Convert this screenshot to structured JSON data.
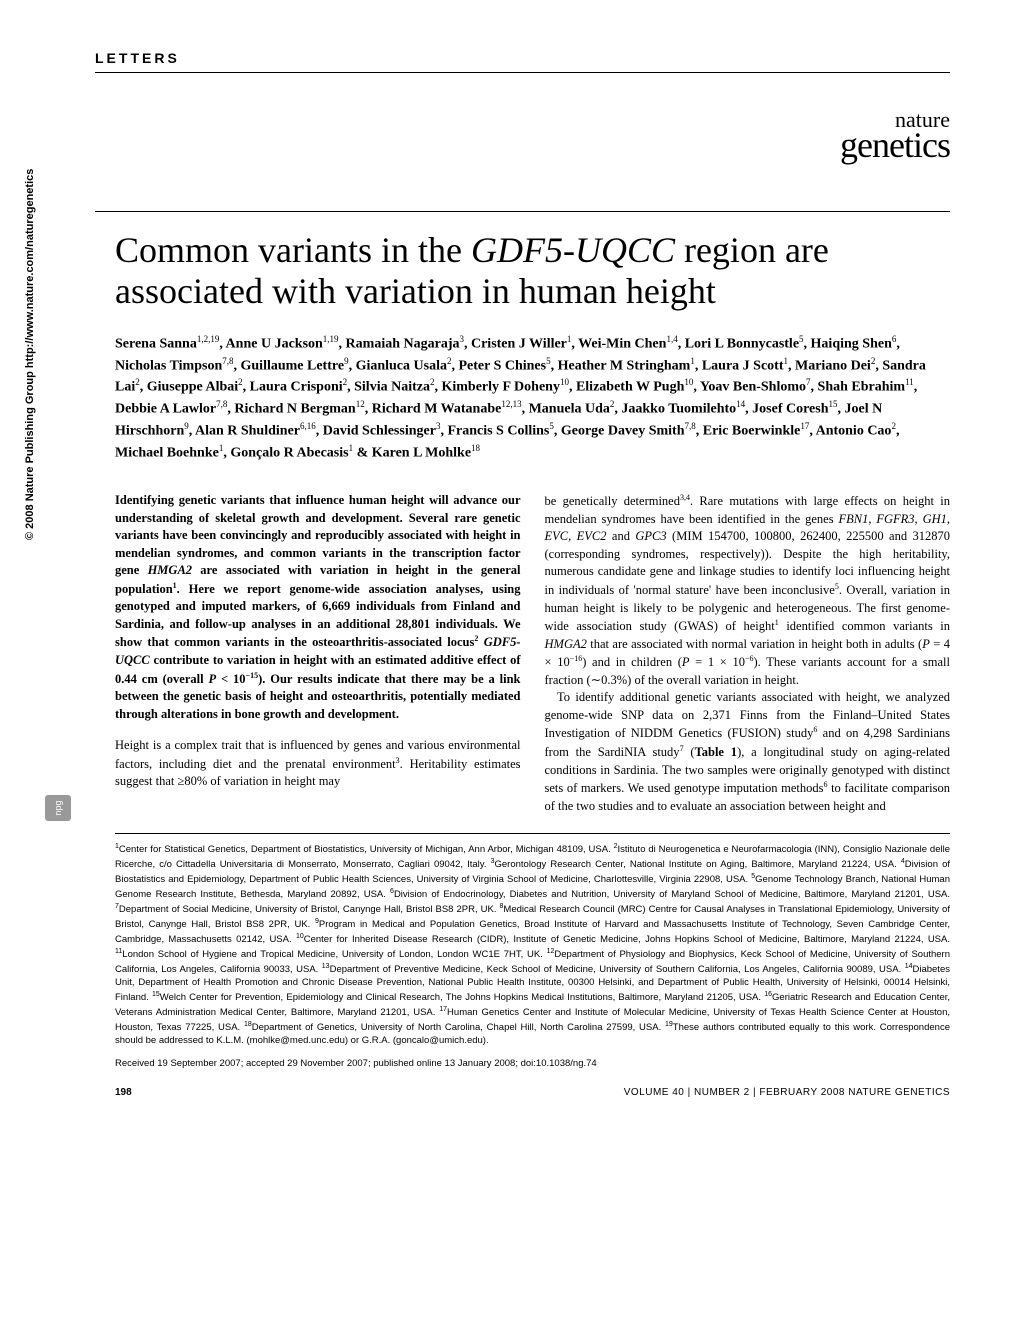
{
  "header": {
    "letters_label": "LETTERS",
    "journal_line1": "nature",
    "journal_line2": "genetics"
  },
  "title": {
    "pre": "Common variants in the ",
    "ital": "GDF5-UQCC",
    "post": " region are associated with variation in human height"
  },
  "authors": "Serena Sanna<sup>1,2,19</sup>, Anne U Jackson<sup>1,19</sup>, Ramaiah Nagaraja<sup>3</sup>, Cristen J Willer<sup>1</sup>, Wei-Min Chen<sup>1,4</sup>, Lori L Bonnycastle<sup>5</sup>, Haiqing Shen<sup>6</sup>, Nicholas Timpson<sup>7,8</sup>, Guillaume Lettre<sup>9</sup>, Gianluca Usala<sup>2</sup>, Peter S Chines<sup>5</sup>, Heather M Stringham<sup>1</sup>, Laura J Scott<sup>1</sup>, Mariano Dei<sup>2</sup>, Sandra Lai<sup>2</sup>, Giuseppe Albai<sup>2</sup>, Laura Crisponi<sup>2</sup>, Silvia Naitza<sup>2</sup>, Kimberly F Doheny<sup>10</sup>, Elizabeth W Pugh<sup>10</sup>, Yoav Ben-Shlomo<sup>7</sup>, Shah Ebrahim<sup>11</sup>, Debbie A Lawlor<sup>7,8</sup>, Richard N Bergman<sup>12</sup>, Richard M Watanabe<sup>12,13</sup>, Manuela Uda<sup>2</sup>, Jaakko Tuomilehto<sup>14</sup>, Josef Coresh<sup>15</sup>, Joel N Hirschhorn<sup>9</sup>, Alan R Shuldiner<sup>6,16</sup>, David Schlessinger<sup>3</sup>, Francis S Collins<sup>5</sup>, George Davey Smith<sup>7,8</sup>, Eric Boerwinkle<sup>17</sup>, Antonio Cao<sup>2</sup>, Michael Boehnke<sup>1</sup>, Gonçalo R Abecasis<sup>1</sup> & Karen L Mohlke<sup>18</sup>",
  "col1": {
    "abstract": "Identifying genetic variants that influence human height will advance our understanding of skeletal growth and development. Several rare genetic variants have been convincingly and reproducibly associated with height in mendelian syndromes, and common variants in the transcription factor gene <i>HMGA2</i> are associated with variation in height in the general population<sup>1</sup>. Here we report genome-wide association analyses, using genotyped and imputed markers, of 6,669 individuals from Finland and Sardinia, and follow-up analyses in an additional 28,801 individuals. We show that common variants in the osteoarthritis-associated locus<sup>2</sup> <i>GDF5-UQCC</i> contribute to variation in height with an estimated additive effect of 0.44 cm (overall <i>P</i> < 10<sup>−15</sup>). Our results indicate that there may be a link between the genetic basis of height and osteoarthritis, potentially mediated through alterations in bone growth and development.",
    "p1": "Height is a complex trait that is influenced by genes and various environmental factors, including diet and the prenatal environment<sup>3</sup>. Heritability estimates suggest that ≥80% of variation in height may"
  },
  "col2": {
    "p1": "be genetically determined<sup>3,4</sup>. Rare mutations with large effects on height in mendelian syndromes have been identified in the genes <i>FBN1</i>, <i>FGFR3</i>, <i>GH1</i>, <i>EVC</i>, <i>EVC2</i> and <i>GPC3</i> (MIM 154700, 100800, 262400, 225500 and 312870 (corresponding syndromes, respectively)). Despite the high heritability, numerous candidate gene and linkage studies to identify loci influencing height in individuals of 'normal stature' have been inconclusive<sup>5</sup>. Overall, variation in human height is likely to be polygenic and heterogeneous. The first genome-wide association study (GWAS) of height<sup>1</sup> identified common variants in <i>HMGA2</i> that are associated with normal variation in height both in adults (<i>P</i> = 4 × 10<sup>−16</sup>) and in children (<i>P</i> = 1 × 10<sup>−6</sup>). These variants account for a small fraction (∼0.3%) of the overall variation in height.",
    "p2": "To identify additional genetic variants associated with height, we analyzed genome-wide SNP data on 2,371 Finns from the Finland–United States Investigation of NIDDM Genetics (FUSION) study<sup>6</sup> and on 4,298 Sardinians from the SardiNIA study<sup>7</sup> (<b>Table 1</b>), a longitudinal study on aging-related conditions in Sardinia. The two samples were originally genotyped with distinct sets of markers. We used genotype imputation methods<sup>6</sup> to facilitate comparison of the two studies and to evaluate an association between height and"
  },
  "affiliations": "<sup>1</sup>Center for Statistical Genetics, Department of Biostatistics, University of Michigan, Ann Arbor, Michigan 48109, USA. <sup>2</sup>Istituto di Neurogenetica e Neurofarmacologia (INN), Consiglio Nazionale delle Ricerche, c/o Cittadella Universitaria di Monserrato, Monserrato, Cagliari 09042, Italy. <sup>3</sup>Gerontology Research Center, National Institute on Aging, Baltimore, Maryland 21224, USA. <sup>4</sup>Division of Biostatistics and Epidemiology, Department of Public Health Sciences, University of Virginia School of Medicine, Charlottesville, Virginia 22908, USA. <sup>5</sup>Genome Technology Branch, National Human Genome Research Institute, Bethesda, Maryland 20892, USA. <sup>6</sup>Division of Endocrinology, Diabetes and Nutrition, University of Maryland School of Medicine, Baltimore, Maryland 21201, USA. <sup>7</sup>Department of Social Medicine, University of Bristol, Canynge Hall, Bristol BS8 2PR, UK. <sup>8</sup>Medical Research Council (MRC) Centre for Causal Analyses in Translational Epidemiology, University of Bristol, Canynge Hall, Bristol BS8 2PR, UK. <sup>9</sup>Program in Medical and Population Genetics, Broad Institute of Harvard and Massachusetts Institute of Technology, Seven Cambridge Center, Cambridge, Massachusetts 02142, USA. <sup>10</sup>Center for Inherited Disease Research (CIDR), Institute of Genetic Medicine, Johns Hopkins School of Medicine, Baltimore, Maryland 21224, USA. <sup>11</sup>London School of Hygiene and Tropical Medicine, University of London, London WC1E 7HT, UK. <sup>12</sup>Department of Physiology and Biophysics, Keck School of Medicine, University of Southern California, Los Angeles, California 90033, USA. <sup>13</sup>Department of Preventive Medicine, Keck School of Medicine, University of Southern California, Los Angeles, California 90089, USA. <sup>14</sup>Diabetes Unit, Department of Health Promotion and Chronic Disease Prevention, National Public Health Institute, 00300 Helsinki, and Department of Public Health, University of Helsinki, 00014 Helsinki, Finland. <sup>15</sup>Welch Center for Prevention, Epidemiology and Clinical Research, The Johns Hopkins Medical Institutions, Baltimore, Maryland 21205, USA. <sup>16</sup>Geriatric Research and Education Center, Veterans Administration Medical Center, Baltimore, Maryland 21201, USA. <sup>17</sup>Human Genetics Center and Institute of Molecular Medicine, University of Texas Health Science Center at Houston, Houston, Texas 77225, USA. <sup>18</sup>Department of Genetics, University of North Carolina, Chapel Hill, North Carolina 27599, USA. <sup>19</sup>These authors contributed equally to this work. Correspondence should be addressed to K.L.M. (mohlke@med.unc.edu) or G.R.A. (goncalo@umich.edu).",
  "received": "Received 19 September 2007; accepted 29 November 2007; published online 13 January 2008; doi:10.1038/ng.74",
  "footer": {
    "page": "198",
    "ref": "VOLUME 40 | NUMBER 2 | FEBRUARY 2008 NATURE GENETICS"
  },
  "side": {
    "copyright": "© 2008 Nature Publishing Group  http://www.nature.com/naturegenetics",
    "badge": "npg"
  }
}
